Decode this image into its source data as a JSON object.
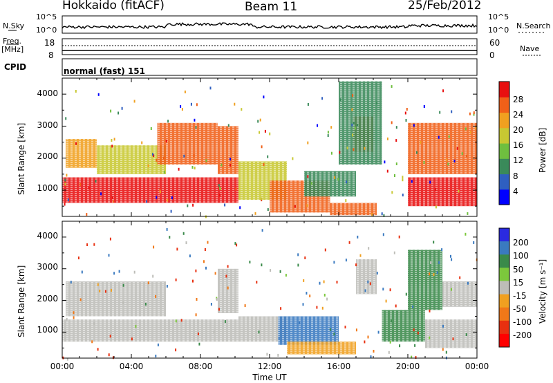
{
  "header": {
    "station": "Hokkaido (fitACF)",
    "beam": "Beam 11",
    "date": "25/Feb/2012"
  },
  "summary_panels": {
    "nsky_label": "N.Sky",
    "nsky_ticks": [
      "10^5",
      "10^0"
    ],
    "nsearch_label": "N.Search",
    "nsearch_ticks": [
      "10^5",
      "10^0"
    ],
    "freq_label_1": "Freq.",
    "freq_label_2": "[MHz]",
    "freq_ticks": [
      "18",
      "8"
    ],
    "nave_label": "Nave",
    "nave_ticks": [
      "60",
      "0"
    ],
    "cpid_label": "CPID",
    "cpid_value": "normal (fast) 151"
  },
  "axes": {
    "xlabel": "Time UT",
    "x_ticks": [
      "00:00",
      "04:00",
      "08:00",
      "12:00",
      "16:00",
      "20:00",
      "00:00"
    ],
    "ylabel": "Slant Range [km]",
    "y_ticks": [
      "1000",
      "2000",
      "3000",
      "4000"
    ]
  },
  "power_scale": {
    "label": "Power [dB]",
    "ticks": [
      "4",
      "8",
      "12",
      "16",
      "20",
      "24",
      "28"
    ],
    "colors": [
      "#0000ff",
      "#2f5fc0",
      "#3a8a5a",
      "#6fbf3f",
      "#c8c832",
      "#f0a020",
      "#f06018",
      "#e81010"
    ]
  },
  "velocity_scale": {
    "label": "Velocity [m s⁻¹]",
    "ticks": [
      "200",
      "100",
      "50",
      "15",
      "-15",
      "-50",
      "-100",
      "-200"
    ],
    "colors": [
      "#2a2ae0",
      "#3a7ac0",
      "#3a8a4a",
      "#7cc83c",
      "#bdbdb8",
      "#f0a020",
      "#f07818",
      "#e83010",
      "#ff0000"
    ]
  },
  "chart_data": [
    {
      "type": "heatmap",
      "name": "power",
      "x_range_hours": [
        0,
        24
      ],
      "y_range_km": [
        180,
        4500
      ],
      "regions": [
        {
          "t0": 0.0,
          "t1": 10.2,
          "r0": 600,
          "r1": 1400,
          "level": 28
        },
        {
          "t0": 0.2,
          "t1": 2.0,
          "r0": 1700,
          "r1": 2600,
          "level": 20
        },
        {
          "t0": 2.0,
          "t1": 6.0,
          "r0": 1500,
          "r1": 2400,
          "level": 16
        },
        {
          "t0": 5.5,
          "t1": 9.0,
          "r0": 1800,
          "r1": 3100,
          "level": 26
        },
        {
          "t0": 9.0,
          "t1": 10.2,
          "r0": 1500,
          "r1": 3000,
          "level": 26
        },
        {
          "t0": 10.2,
          "t1": 13.0,
          "r0": 700,
          "r1": 1900,
          "level": 18
        },
        {
          "t0": 12.0,
          "t1": 15.5,
          "r0": 300,
          "r1": 1300,
          "level": 26
        },
        {
          "t0": 14.0,
          "t1": 17.0,
          "r0": 800,
          "r1": 1600,
          "level": 10
        },
        {
          "t0": 15.5,
          "t1": 18.2,
          "r0": 220,
          "r1": 600,
          "level": 26
        },
        {
          "t0": 16.8,
          "t1": 18.0,
          "r0": 2200,
          "r1": 3300,
          "level": 24
        },
        {
          "t0": 16.0,
          "t1": 18.5,
          "r0": 1800,
          "r1": 4400,
          "level": 8
        },
        {
          "t0": 20.0,
          "t1": 24.0,
          "r0": 500,
          "r1": 1400,
          "level": 28
        },
        {
          "t0": 20.0,
          "t1": 24.0,
          "r0": 1500,
          "r1": 3100,
          "level": 24
        }
      ]
    },
    {
      "type": "heatmap",
      "name": "velocity",
      "x_range_hours": [
        0,
        24
      ],
      "y_range_km": [
        180,
        4500
      ],
      "regions": [
        {
          "t0": 0.0,
          "t1": 10.2,
          "r0": 700,
          "r1": 1400,
          "level": 0
        },
        {
          "t0": 0.2,
          "t1": 6.0,
          "r0": 1500,
          "r1": 2600,
          "level": 0
        },
        {
          "t0": 9.0,
          "t1": 10.2,
          "r0": 1600,
          "r1": 3000,
          "level": 0
        },
        {
          "t0": 10.2,
          "t1": 13.0,
          "r0": 700,
          "r1": 1500,
          "level": 0
        },
        {
          "t0": 12.5,
          "t1": 16.0,
          "r0": 600,
          "r1": 1500,
          "level": 80
        },
        {
          "t0": 13.0,
          "t1": 17.0,
          "r0": 300,
          "r1": 700,
          "level": -20
        },
        {
          "t0": 17.0,
          "t1": 18.2,
          "r0": 2200,
          "r1": 3300,
          "level": 0
        },
        {
          "t0": 18.5,
          "t1": 21.0,
          "r0": 700,
          "r1": 1700,
          "level": 40
        },
        {
          "t0": 20.0,
          "t1": 22.0,
          "r0": 1700,
          "r1": 3600,
          "level": 40
        },
        {
          "t0": 21.0,
          "t1": 24.0,
          "r0": 500,
          "r1": 1400,
          "level": 0
        },
        {
          "t0": 22.0,
          "t1": 24.0,
          "r0": 1800,
          "r1": 2600,
          "level": 0
        }
      ]
    }
  ]
}
